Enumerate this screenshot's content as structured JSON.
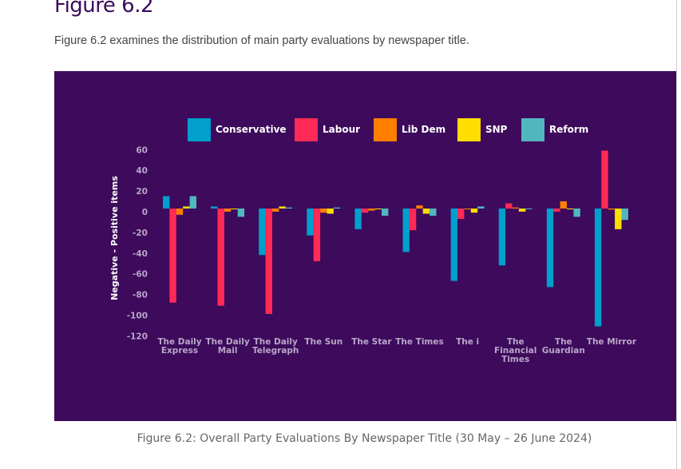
{
  "page": {
    "heading": "Figure 6.2",
    "intro": "Figure 6.2 examines the distribution of main party evaluations by newspaper title.",
    "caption": "Figure 6.2: Overall Party Evaluations By Newspaper Title (30 May – 26 June 2024)"
  },
  "chart_data": {
    "type": "bar",
    "title": "",
    "xlabel": "",
    "ylabel": "Negative - Positive items",
    "ylim": [
      -120,
      60
    ],
    "yticks": [
      60,
      40,
      20,
      0,
      -20,
      -40,
      -60,
      -80,
      -100,
      -120
    ],
    "grid": false,
    "legend_position": "top",
    "background": "#3d0a5c",
    "categories": [
      "The Daily Express",
      "The Daily Mail",
      "The Daily Telegraph",
      "The Sun",
      "The Star",
      "The Times",
      "The i",
      "The Financial Times",
      "The Guardian",
      "The Mirror"
    ],
    "series": [
      {
        "name": "Conservative",
        "color": "#009fcc",
        "values": [
          12,
          2,
          -45,
          -26,
          -20,
          -42,
          -70,
          -55,
          -76,
          -114
        ]
      },
      {
        "name": "Labour",
        "color": "#ff2a55",
        "values": [
          -91,
          -94,
          -102,
          -51,
          -4,
          -21,
          -10,
          5,
          -3,
          56
        ]
      },
      {
        "name": "Lib Dem",
        "color": "#ff7f00",
        "values": [
          -6,
          -3,
          -3,
          -4,
          -2,
          3,
          0,
          1,
          7,
          -1
        ]
      },
      {
        "name": "SNP",
        "color": "#ffde00",
        "values": [
          2,
          0,
          2,
          -5,
          0,
          -5,
          -4,
          -3,
          0,
          -20
        ]
      },
      {
        "name": "Reform",
        "color": "#52b6bf",
        "values": [
          12,
          -8,
          1,
          1,
          -7,
          -7,
          2,
          0,
          -8,
          -11
        ]
      }
    ]
  }
}
